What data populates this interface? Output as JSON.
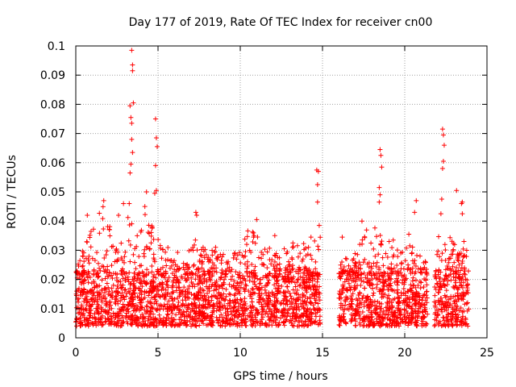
{
  "chart_data": {
    "type": "scatter",
    "title": "Day 177 of 2019, Rate Of TEC Index for receiver cn00",
    "xlabel": "GPS time / hours",
    "ylabel": "ROTI / TECUs",
    "xlim": [
      0,
      25
    ],
    "ylim": [
      0,
      0.1
    ],
    "x_ticks": [
      0,
      5,
      10,
      15,
      20,
      25
    ],
    "x_tick_labels": [
      "0",
      "5",
      "10",
      "15",
      "20",
      "25"
    ],
    "y_ticks": [
      0,
      0.01,
      0.02,
      0.03,
      0.04,
      0.05,
      0.06,
      0.07,
      0.08,
      0.09,
      0.1
    ],
    "y_tick_labels": [
      "0",
      "0.01",
      "0.02",
      "0.03",
      "0.04",
      "0.05",
      "0.06",
      "0.07",
      "0.08",
      "0.09",
      "0.1"
    ],
    "grid": true,
    "marker": "+",
    "color": "#ff0000",
    "segments": [
      {
        "x": [
          0.0,
          14.9
        ],
        "base_range": [
          0.004,
          0.022
        ]
      },
      {
        "x": [
          16.0,
          21.4
        ],
        "base_range": [
          0.004,
          0.022
        ]
      },
      {
        "x": [
          21.8,
          23.9
        ],
        "base_range": [
          0.004,
          0.024
        ]
      }
    ],
    "series": [
      {
        "name": "ROTI",
        "notable_points": [
          {
            "x": 3.4,
            "y": 0.0985
          },
          {
            "x": 3.45,
            "y": 0.0935
          },
          {
            "x": 3.45,
            "y": 0.0915
          },
          {
            "x": 3.5,
            "y": 0.0805
          },
          {
            "x": 3.3,
            "y": 0.0795
          },
          {
            "x": 3.35,
            "y": 0.0755
          },
          {
            "x": 3.4,
            "y": 0.0735
          },
          {
            "x": 3.4,
            "y": 0.068
          },
          {
            "x": 3.45,
            "y": 0.0635
          },
          {
            "x": 3.35,
            "y": 0.0595
          },
          {
            "x": 3.3,
            "y": 0.0565
          },
          {
            "x": 3.25,
            "y": 0.046
          },
          {
            "x": 4.85,
            "y": 0.075
          },
          {
            "x": 4.9,
            "y": 0.0685
          },
          {
            "x": 4.95,
            "y": 0.0655
          },
          {
            "x": 4.85,
            "y": 0.059
          },
          {
            "x": 4.9,
            "y": 0.0505
          },
          {
            "x": 4.8,
            "y": 0.0495
          },
          {
            "x": 4.3,
            "y": 0.05
          },
          {
            "x": 4.2,
            "y": 0.045
          },
          {
            "x": 1.7,
            "y": 0.047
          },
          {
            "x": 7.3,
            "y": 0.043
          },
          {
            "x": 7.35,
            "y": 0.042
          },
          {
            "x": 11.0,
            "y": 0.0405
          },
          {
            "x": 14.65,
            "y": 0.0575
          },
          {
            "x": 14.75,
            "y": 0.057
          },
          {
            "x": 14.7,
            "y": 0.0525
          },
          {
            "x": 14.7,
            "y": 0.0465
          },
          {
            "x": 14.8,
            "y": 0.0385
          },
          {
            "x": 18.5,
            "y": 0.0645
          },
          {
            "x": 18.55,
            "y": 0.0625
          },
          {
            "x": 18.6,
            "y": 0.0585
          },
          {
            "x": 18.45,
            "y": 0.0515
          },
          {
            "x": 18.5,
            "y": 0.049
          },
          {
            "x": 18.45,
            "y": 0.0465
          },
          {
            "x": 20.7,
            "y": 0.047
          },
          {
            "x": 20.6,
            "y": 0.043
          },
          {
            "x": 20.25,
            "y": 0.0355
          },
          {
            "x": 17.4,
            "y": 0.04
          },
          {
            "x": 22.3,
            "y": 0.0715
          },
          {
            "x": 22.35,
            "y": 0.0695
          },
          {
            "x": 22.4,
            "y": 0.066
          },
          {
            "x": 22.35,
            "y": 0.0605
          },
          {
            "x": 22.3,
            "y": 0.058
          },
          {
            "x": 22.25,
            "y": 0.0475
          },
          {
            "x": 22.2,
            "y": 0.0425
          },
          {
            "x": 23.15,
            "y": 0.0505
          },
          {
            "x": 23.5,
            "y": 0.0465
          },
          {
            "x": 23.45,
            "y": 0.046
          },
          {
            "x": 23.5,
            "y": 0.0425
          },
          {
            "x": 23.6,
            "y": 0.033
          },
          {
            "x": 0.7,
            "y": 0.042
          },
          {
            "x": 2.9,
            "y": 0.046
          },
          {
            "x": 2.6,
            "y": 0.042
          },
          {
            "x": 12.1,
            "y": 0.035
          },
          {
            "x": 14.3,
            "y": 0.0345
          },
          {
            "x": 16.2,
            "y": 0.0345
          },
          {
            "x": 19.3,
            "y": 0.0335
          },
          {
            "x": 8.5,
            "y": 0.031
          },
          {
            "x": 13.2,
            "y": 0.0325
          }
        ],
        "activity_envelope": [
          {
            "x": 0.0,
            "max": 0.024
          },
          {
            "x": 1.0,
            "max": 0.038
          },
          {
            "x": 1.7,
            "max": 0.046
          },
          {
            "x": 2.5,
            "max": 0.03
          },
          {
            "x": 3.0,
            "max": 0.044
          },
          {
            "x": 3.5,
            "max": 0.04
          },
          {
            "x": 4.3,
            "max": 0.044
          },
          {
            "x": 5.0,
            "max": 0.034
          },
          {
            "x": 6.0,
            "max": 0.03
          },
          {
            "x": 7.3,
            "max": 0.034
          },
          {
            "x": 8.5,
            "max": 0.03
          },
          {
            "x": 9.5,
            "max": 0.028
          },
          {
            "x": 10.5,
            "max": 0.037
          },
          {
            "x": 11.0,
            "max": 0.036
          },
          {
            "x": 12.0,
            "max": 0.03
          },
          {
            "x": 13.0,
            "max": 0.031
          },
          {
            "x": 14.0,
            "max": 0.033
          },
          {
            "x": 14.9,
            "max": 0.036
          },
          {
            "x": 16.0,
            "max": 0.026
          },
          {
            "x": 17.0,
            "max": 0.03
          },
          {
            "x": 17.6,
            "max": 0.037
          },
          {
            "x": 18.5,
            "max": 0.038
          },
          {
            "x": 19.3,
            "max": 0.032
          },
          {
            "x": 20.4,
            "max": 0.032
          },
          {
            "x": 21.4,
            "max": 0.026
          },
          {
            "x": 21.8,
            "max": 0.036
          },
          {
            "x": 22.3,
            "max": 0.04
          },
          {
            "x": 23.0,
            "max": 0.034
          },
          {
            "x": 23.9,
            "max": 0.03
          }
        ],
        "background_point_count": 3200,
        "random_seed": 177
      }
    ]
  }
}
